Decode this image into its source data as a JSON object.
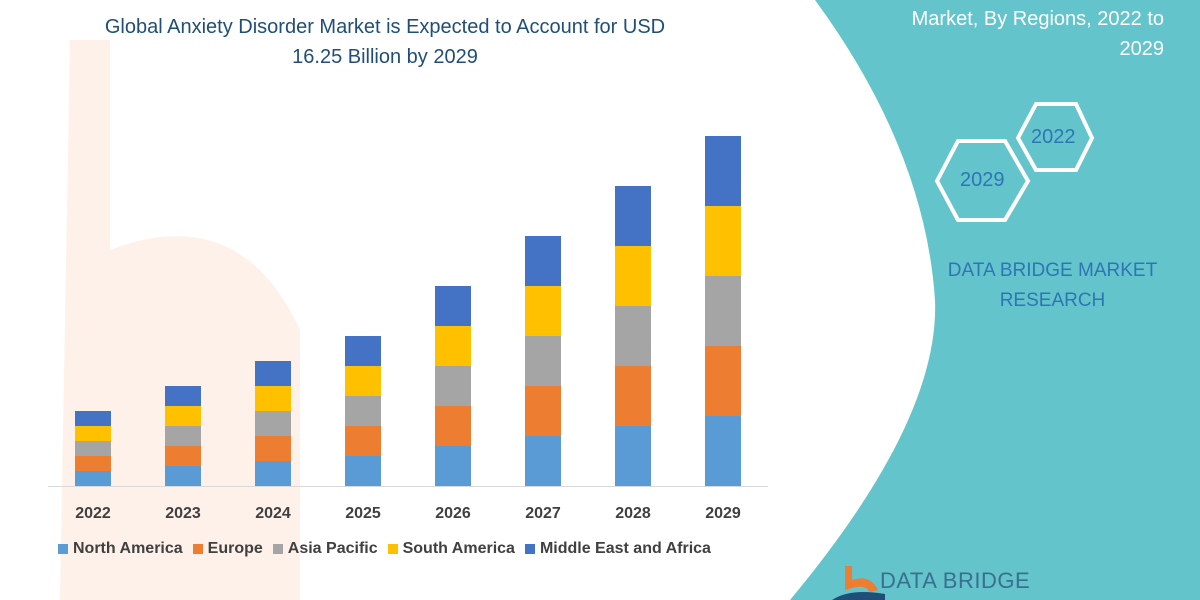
{
  "title": "Global Anxiety Disorder Market is Expected to Account for USD 16.25 Billion by 2029",
  "title_lines": [
    "Global Anxiety Disorder Market is Expected to Account for USD",
    "16.25 Billion by 2029"
  ],
  "side_title_lines": [
    "Market, By Regions, 2022 to",
    "2029"
  ],
  "hexagons": [
    "2022",
    "2029"
  ],
  "brand_lines": [
    "DATA BRIDGE MARKET",
    "RESEARCH"
  ],
  "logo_text": "DATA BRIDGE",
  "colors": {
    "panel": "#63c5cb",
    "title": "#1f4e79",
    "brand": "#2e75b6"
  },
  "chart_data": {
    "type": "bar",
    "stacked": true,
    "title": "Global Anxiety Disorder Market is Expected to Account for USD 16.25 Billion by 2029",
    "xlabel": "",
    "ylabel": "",
    "y_axis_shown": false,
    "grid": false,
    "legend_position": "bottom",
    "categories": [
      "2022",
      "2023",
      "2024",
      "2025",
      "2026",
      "2027",
      "2028",
      "2029"
    ],
    "ylim": [
      0,
      360
    ],
    "series": [
      {
        "name": "North America",
        "color": "#5b9bd5",
        "values": [
          15,
          20,
          25,
          30,
          40,
          50,
          60,
          70
        ]
      },
      {
        "name": "Europe",
        "color": "#ed7d31",
        "values": [
          15,
          20,
          25,
          30,
          40,
          50,
          60,
          70
        ]
      },
      {
        "name": "Asia Pacific",
        "color": "#a5a5a5",
        "values": [
          15,
          20,
          25,
          30,
          40,
          50,
          60,
          70
        ]
      },
      {
        "name": "South America",
        "color": "#ffc000",
        "values": [
          15,
          20,
          25,
          30,
          40,
          50,
          60,
          70
        ]
      },
      {
        "name": "Middle East and Africa",
        "color": "#4472c4",
        "values": [
          15,
          20,
          25,
          30,
          40,
          50,
          60,
          70
        ]
      }
    ]
  }
}
